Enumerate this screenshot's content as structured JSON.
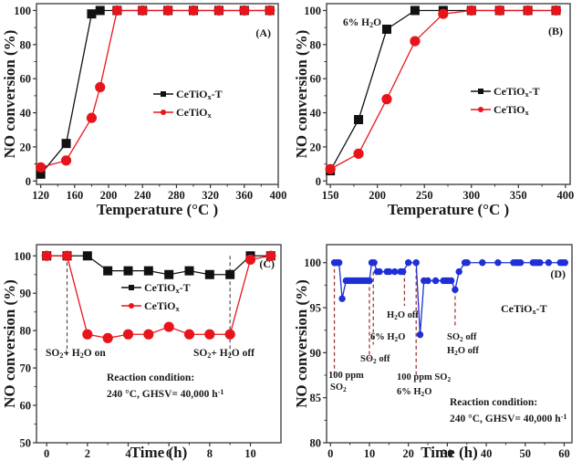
{
  "colors": {
    "black_series": "#111111",
    "red_series": "#e8141b",
    "blue_series": "#1f2fd6",
    "annotation_line": "#9b3a3a",
    "frame": "#444444"
  },
  "chart_data": [
    {
      "id": "A",
      "type": "line",
      "panel_label": "(A)",
      "xlabel": "Temperature (°C )",
      "ylabel": "NO conversion (%)",
      "xlim": [
        115,
        400
      ],
      "ylim": [
        -2,
        104
      ],
      "xticks": [
        120,
        160,
        200,
        240,
        280,
        320,
        360,
        400
      ],
      "xtick_labels": [
        "120",
        "160",
        "200",
        "240",
        "280",
        "320",
        "360",
        "400"
      ],
      "yticks": [
        0,
        20,
        40,
        60,
        80,
        100
      ],
      "ytick_labels": [
        "0",
        "20",
        "40",
        "60",
        "80",
        "100"
      ],
      "legend": {
        "position": "center-right",
        "entries": [
          "CeTiO",
          "CeTiO"
        ],
        "subscripts": [
          "x",
          "x"
        ],
        "suffixes": [
          "-T",
          ""
        ]
      },
      "series": [
        {
          "name": "CeTiOx-T",
          "marker": "square",
          "color_key": "black_series",
          "x": [
            120,
            150,
            180,
            190,
            210,
            240,
            270,
            300,
            330,
            360,
            390
          ],
          "y": [
            4,
            22,
            98,
            100,
            100,
            100,
            100,
            100,
            100,
            100,
            100
          ]
        },
        {
          "name": "CeTiOx",
          "marker": "circle",
          "color_key": "red_series",
          "x": [
            120,
            150,
            180,
            190,
            210,
            240,
            270,
            300,
            330,
            360,
            390
          ],
          "y": [
            8,
            12,
            37,
            55,
            100,
            100,
            100,
            100,
            100,
            100,
            100
          ]
        }
      ],
      "annotations": []
    },
    {
      "id": "B",
      "type": "line",
      "panel_label": "(B)",
      "xlabel": "Temperature (°C )",
      "ylabel": "NO conversion (%)",
      "xlim": [
        146,
        405
      ],
      "ylim": [
        -2,
        104
      ],
      "xticks": [
        150,
        200,
        250,
        300,
        350,
        400
      ],
      "xtick_labels": [
        "150",
        "200",
        "250",
        "300",
        "350",
        "400"
      ],
      "yticks": [
        0,
        20,
        40,
        60,
        80,
        100
      ],
      "ytick_labels": [
        "0",
        "20",
        "40",
        "60",
        "80",
        "100"
      ],
      "legend": {
        "position": "center-right",
        "entries": [
          "CeTiO",
          "CeTiO"
        ],
        "subscripts": [
          "x",
          "x"
        ],
        "suffixes": [
          "-T",
          ""
        ]
      },
      "series": [
        {
          "name": "CeTiOx-T",
          "marker": "square",
          "color_key": "black_series",
          "x": [
            150,
            180,
            210,
            240,
            270,
            300,
            330,
            360,
            390
          ],
          "y": [
            6,
            36,
            89,
            100,
            100,
            100,
            100,
            100,
            100
          ]
        },
        {
          "name": "CeTiOx",
          "marker": "circle",
          "color_key": "red_series",
          "x": [
            150,
            180,
            210,
            240,
            270,
            300,
            330,
            360,
            390
          ],
          "y": [
            7,
            16,
            48,
            82,
            98,
            100,
            100,
            100,
            100
          ]
        }
      ],
      "annotations": [
        {
          "text": "6% H",
          "sub": "2",
          "tail": "O"
        }
      ]
    },
    {
      "id": "C",
      "type": "line",
      "panel_label": "(C)",
      "xlabel": "Time (h)",
      "ylabel": "NO conversion (%)",
      "xlim": [
        -0.5,
        11.5
      ],
      "ylim": [
        50,
        103
      ],
      "xticks": [
        0,
        2,
        4,
        6,
        8,
        10
      ],
      "xtick_labels": [
        "0",
        "2",
        "4",
        "6",
        "8",
        "10"
      ],
      "yticks": [
        50,
        60,
        70,
        80,
        90,
        100
      ],
      "ytick_labels": [
        "50",
        "60",
        "70",
        "80",
        "90",
        "100"
      ],
      "legend": {
        "position": "top-center",
        "entries": [
          "CeTiO",
          "CeTiO"
        ],
        "subscripts": [
          "x",
          "x"
        ],
        "suffixes": [
          "-T",
          ""
        ]
      },
      "series": [
        {
          "name": "CeTiOx-T",
          "marker": "square",
          "color_key": "black_series",
          "x": [
            0,
            1,
            2,
            3,
            4,
            5,
            6,
            7,
            8,
            9,
            10,
            11
          ],
          "y": [
            100,
            100,
            100,
            96,
            96,
            96,
            95,
            96,
            95,
            95,
            100,
            100
          ]
        },
        {
          "name": "CeTiOx",
          "marker": "circle",
          "color_key": "red_series",
          "x": [
            0,
            1,
            2,
            3,
            4,
            5,
            6,
            7,
            8,
            9,
            10,
            11
          ],
          "y": [
            100,
            100,
            79,
            78,
            79,
            79,
            81,
            79,
            79,
            79,
            99,
            100
          ]
        }
      ],
      "vlines": [
        1,
        9
      ],
      "annotations": [
        {
          "text": "SO",
          "sub": "2",
          "tail": "+ H",
          "sub2": "2",
          "tail2": "O on"
        },
        {
          "text": "SO",
          "sub": "2",
          "tail": "+ H",
          "sub2": "2",
          "tail2": "O off"
        }
      ],
      "condition": {
        "line1": "Reaction condition:",
        "line2": "240 °C, GHSV= 40,000 h",
        "sup": "-1"
      }
    },
    {
      "id": "D",
      "type": "line",
      "panel_label": "(D)",
      "xlabel": "Time (h)",
      "ylabel": "NO conversion (%)",
      "xlim": [
        -1,
        62
      ],
      "ylim": [
        80,
        102
      ],
      "xticks": [
        0,
        10,
        20,
        30,
        40,
        50,
        60
      ],
      "xtick_labels": [
        "0",
        "10",
        "20",
        "30",
        "40",
        "50",
        "60"
      ],
      "yticks": [
        80,
        85,
        90,
        95,
        100
      ],
      "ytick_labels": [
        "80",
        "85",
        "90",
        "95",
        "100"
      ],
      "series_label": {
        "text": "CeTiO",
        "sub": "x",
        "tail": "-T"
      },
      "series": [
        {
          "name": "CeTiOx-T",
          "marker": "circle",
          "color_key": "blue_series",
          "x": [
            1,
            1.6,
            2.2,
            3,
            4,
            4.6,
            5.2,
            5.8,
            6.4,
            7,
            7.6,
            8.2,
            8.8,
            9.4,
            10,
            10.6,
            11.2,
            12,
            12.6,
            14.5,
            15.1,
            16.5,
            18,
            18.6,
            20,
            22,
            23,
            24,
            25,
            27,
            29,
            29.6,
            30.2,
            31,
            32,
            33,
            34.5,
            35.1,
            39,
            43,
            47,
            47.6,
            48.2,
            48.8,
            52,
            52.6,
            53.2,
            53.8,
            56,
            59,
            59.6,
            60.2
          ],
          "y": [
            100,
            100,
            100,
            96,
            98,
            98,
            98,
            98,
            98,
            98,
            98,
            98,
            98,
            98,
            98,
            100,
            100,
            99,
            99,
            99,
            99,
            99,
            99,
            99,
            100,
            100,
            92,
            98,
            98,
            98,
            98,
            98,
            98,
            98,
            97,
            99,
            100,
            100,
            100,
            100,
            100,
            100,
            100,
            100,
            100,
            100,
            100,
            100,
            100,
            100,
            100,
            100
          ]
        }
      ],
      "vlines": [
        {
          "x": 1,
          "y_from": 100,
          "y_to": 87.2
        },
        {
          "x": 10,
          "y_from": 98,
          "y_to": 89.3
        },
        {
          "x": 11,
          "y_from": 99,
          "y_to": 90.9
        },
        {
          "x": 19,
          "y_from": 99,
          "y_to": 95.2
        },
        {
          "x": 22,
          "y_from": 100,
          "y_to": 87.3
        },
        {
          "x": 32,
          "y_from": 97,
          "y_to": 92.8
        }
      ],
      "annotations": [
        {
          "text": "100 ppm"
        },
        {
          "text": "SO",
          "sub": "2"
        },
        {
          "text": "SO",
          "sub": "2",
          "tail": " off"
        },
        {
          "text": "6% H",
          "sub": "2",
          "tail": "O"
        },
        {
          "text": "H",
          "sub": "2",
          "tail": "O off"
        },
        {
          "text": "100 ppm SO",
          "sub": "2"
        },
        {
          "text": "6% H",
          "sub": "2",
          "tail": "O"
        },
        {
          "text": "SO",
          "sub": "2",
          "tail": " off"
        },
        {
          "text": "H",
          "sub": "2",
          "tail": "O off"
        }
      ],
      "condition": {
        "line1": "Reaction condition:",
        "line2": "240 °C, GHSV= 40,000 h",
        "sup": "-1"
      }
    }
  ]
}
